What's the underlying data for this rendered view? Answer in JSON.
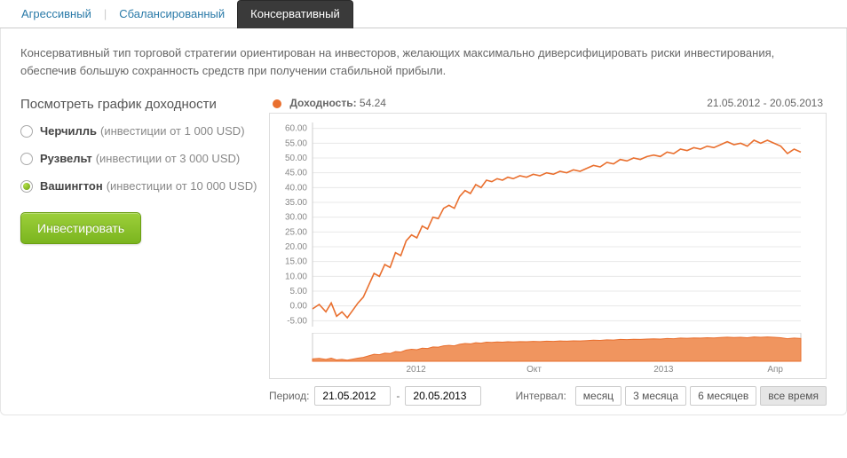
{
  "tabs": {
    "aggressive": "Агрессивный",
    "balanced": "Сбалансированный",
    "conservative": "Консервативный",
    "active": "conservative"
  },
  "description": "Консервативный тип торговой стратегии ориентирован на инвесторов, желающих максимально диверсифицировать риски инвестирования, обеспечив большую сохранность средств при получении стабильной прибыли.",
  "left": {
    "heading": "Посмотреть график доходности",
    "options": [
      {
        "name": "Черчилль",
        "hint": "(инвестиции от 1 000 USD)",
        "selected": false
      },
      {
        "name": "Рузвельт",
        "hint": "(инвестиции от 3 000 USD)",
        "selected": false
      },
      {
        "name": "Вашингтон",
        "hint": "(инвестиции от 10 000 USD)",
        "selected": true
      }
    ],
    "invest_button": "Инвестировать"
  },
  "chart": {
    "legend_label": "Доходность:",
    "legend_value": "54.24",
    "legend_color": "#e96f2e",
    "date_range": "21.05.2012 - 20.05.2013",
    "type": "line",
    "line_color": "#e96f2e",
    "line_width": 1.6,
    "grid_color": "#e8e8e8",
    "background_color": "#ffffff",
    "axis_color": "#cccccc",
    "tick_font_size": 10,
    "tick_color": "#888888",
    "y_ticks": [
      -5,
      0,
      5,
      10,
      15,
      20,
      25,
      30,
      35,
      40,
      45,
      50,
      55,
      60
    ],
    "y_min": -7,
    "y_max": 62,
    "x_min": 0,
    "x_max": 365,
    "x_labels": [
      {
        "x": 70,
        "label": "2012"
      },
      {
        "x": 160,
        "label": "Окт"
      },
      {
        "x": 255,
        "label": "2013"
      },
      {
        "x": 340,
        "label": "Апр"
      }
    ],
    "series": [
      {
        "x": 0,
        "y": -1
      },
      {
        "x": 5,
        "y": 0.5
      },
      {
        "x": 10,
        "y": -2
      },
      {
        "x": 14,
        "y": 1
      },
      {
        "x": 18,
        "y": -3.5
      },
      {
        "x": 22,
        "y": -2
      },
      {
        "x": 26,
        "y": -4
      },
      {
        "x": 30,
        "y": -1.5
      },
      {
        "x": 34,
        "y": 1
      },
      {
        "x": 38,
        "y": 3
      },
      {
        "x": 42,
        "y": 7
      },
      {
        "x": 46,
        "y": 11
      },
      {
        "x": 50,
        "y": 10
      },
      {
        "x": 54,
        "y": 14
      },
      {
        "x": 58,
        "y": 13
      },
      {
        "x": 62,
        "y": 18
      },
      {
        "x": 66,
        "y": 17
      },
      {
        "x": 70,
        "y": 22
      },
      {
        "x": 74,
        "y": 24
      },
      {
        "x": 78,
        "y": 23
      },
      {
        "x": 82,
        "y": 27
      },
      {
        "x": 86,
        "y": 26
      },
      {
        "x": 90,
        "y": 30
      },
      {
        "x": 94,
        "y": 29.5
      },
      {
        "x": 98,
        "y": 33
      },
      {
        "x": 102,
        "y": 34
      },
      {
        "x": 106,
        "y": 33
      },
      {
        "x": 110,
        "y": 37
      },
      {
        "x": 114,
        "y": 39
      },
      {
        "x": 118,
        "y": 38
      },
      {
        "x": 122,
        "y": 41
      },
      {
        "x": 126,
        "y": 40
      },
      {
        "x": 130,
        "y": 42.5
      },
      {
        "x": 134,
        "y": 42
      },
      {
        "x": 138,
        "y": 43
      },
      {
        "x": 142,
        "y": 42.5
      },
      {
        "x": 146,
        "y": 43.5
      },
      {
        "x": 150,
        "y": 43
      },
      {
        "x": 155,
        "y": 44
      },
      {
        "x": 160,
        "y": 43.5
      },
      {
        "x": 165,
        "y": 44.5
      },
      {
        "x": 170,
        "y": 44
      },
      {
        "x": 175,
        "y": 45
      },
      {
        "x": 180,
        "y": 44.5
      },
      {
        "x": 185,
        "y": 45.5
      },
      {
        "x": 190,
        "y": 45
      },
      {
        "x": 195,
        "y": 46
      },
      {
        "x": 200,
        "y": 45.5
      },
      {
        "x": 205,
        "y": 46.5
      },
      {
        "x": 210,
        "y": 47.5
      },
      {
        "x": 215,
        "y": 47
      },
      {
        "x": 220,
        "y": 48.5
      },
      {
        "x": 225,
        "y": 48
      },
      {
        "x": 230,
        "y": 49.5
      },
      {
        "x": 235,
        "y": 49
      },
      {
        "x": 240,
        "y": 50
      },
      {
        "x": 245,
        "y": 49.5
      },
      {
        "x": 250,
        "y": 50.5
      },
      {
        "x": 255,
        "y": 51
      },
      {
        "x": 260,
        "y": 50.5
      },
      {
        "x": 265,
        "y": 52
      },
      {
        "x": 270,
        "y": 51.5
      },
      {
        "x": 275,
        "y": 53
      },
      {
        "x": 280,
        "y": 52.5
      },
      {
        "x": 285,
        "y": 53.5
      },
      {
        "x": 290,
        "y": 53
      },
      {
        "x": 295,
        "y": 54
      },
      {
        "x": 300,
        "y": 53.5
      },
      {
        "x": 305,
        "y": 54.5
      },
      {
        "x": 310,
        "y": 55.5
      },
      {
        "x": 315,
        "y": 54.5
      },
      {
        "x": 320,
        "y": 55
      },
      {
        "x": 325,
        "y": 54
      },
      {
        "x": 330,
        "y": 56
      },
      {
        "x": 335,
        "y": 55
      },
      {
        "x": 340,
        "y": 56
      },
      {
        "x": 345,
        "y": 55
      },
      {
        "x": 350,
        "y": 54
      },
      {
        "x": 355,
        "y": 51.5
      },
      {
        "x": 360,
        "y": 53
      },
      {
        "x": 365,
        "y": 52
      }
    ],
    "overview": {
      "fill_color": "#ef8f56",
      "fill_opacity": 0.95,
      "height": 40,
      "x_labels": [
        {
          "x": 70,
          "label": "2012"
        },
        {
          "x": 160,
          "label": "Окт"
        },
        {
          "x": 255,
          "label": "2013"
        },
        {
          "x": 340,
          "label": "Апр"
        }
      ]
    }
  },
  "period": {
    "label": "Период:",
    "from": "21.05.2012",
    "sep": "-",
    "to": "20.05.2013",
    "interval_label": "Интервал:",
    "buttons": [
      {
        "label": "месяц",
        "active": false
      },
      {
        "label": "3 месяца",
        "active": false
      },
      {
        "label": "6 месяцев",
        "active": false
      },
      {
        "label": "все время",
        "active": true
      }
    ]
  }
}
